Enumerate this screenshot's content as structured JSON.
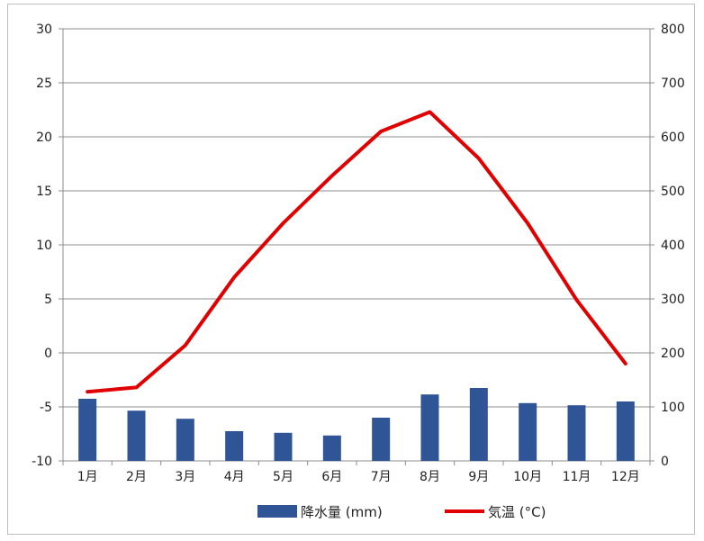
{
  "chart_data": {
    "type": "bar+line",
    "categories": [
      "1月",
      "2月",
      "3月",
      "4月",
      "5月",
      "6月",
      "7月",
      "8月",
      "9月",
      "10月",
      "11月",
      "12月"
    ],
    "series": [
      {
        "name": "降水量 (mm)",
        "type": "bar",
        "axis": "right",
        "color": "#2f5597",
        "values": [
          115,
          93,
          78,
          55,
          52,
          47,
          80,
          123,
          135,
          107,
          103,
          110
        ]
      },
      {
        "name": "気温 (°C)",
        "type": "line",
        "axis": "left",
        "color": "#e00000",
        "values": [
          -3.6,
          -3.2,
          0.7,
          7,
          12,
          16.4,
          20.5,
          22.3,
          18,
          12,
          4.9,
          -1
        ]
      }
    ],
    "left_axis": {
      "min": -10,
      "max": 30,
      "ticks": [
        "30",
        "25",
        "20",
        "15",
        "10",
        "5",
        "0",
        "-5",
        "-10"
      ]
    },
    "right_axis": {
      "min": 0,
      "max": 800,
      "ticks": [
        "800",
        "700",
        "600",
        "500",
        "400",
        "300",
        "200",
        "100",
        "0"
      ]
    },
    "grid": true,
    "legend_position": "bottom"
  }
}
